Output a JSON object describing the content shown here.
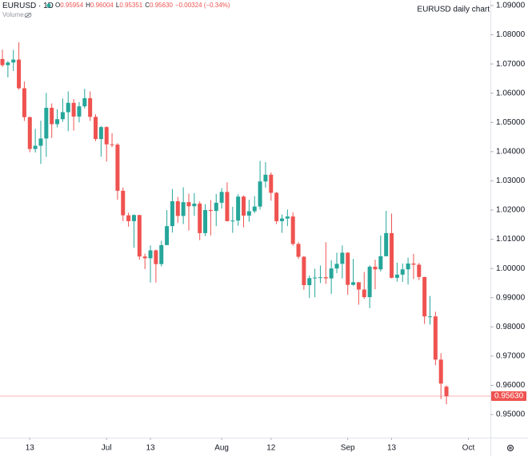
{
  "chart_data": {
    "type": "candlestick",
    "title": "EURUSD daily chart",
    "header": {
      "symbol": "EURUSD · 1D",
      "ohlc": [
        {
          "key": "O",
          "value": "0.95954"
        },
        {
          "key": "H",
          "value": "0.96004"
        },
        {
          "key": "L",
          "value": "0.95351"
        },
        {
          "key": "C",
          "value": "0.95630"
        }
      ],
      "change": "−0.00324 (−0.34%)",
      "volume": "Volume"
    },
    "up_color": "#26a69a",
    "down_color": "#ef5350",
    "last_price_label": "0.95630",
    "open": [
      1.0717,
      1.0696,
      1.0705,
      1.0715,
      1.0617,
      1.0518,
      1.0409,
      1.042,
      1.0445,
      1.055,
      1.0494,
      1.0511,
      1.0535,
      1.0567,
      1.052,
      1.0555,
      1.0583,
      1.0519,
      1.0443,
      1.0484,
      1.0425,
      1.0424,
      1.0266,
      1.0182,
      1.0162,
      1.0183,
      1.0041,
      1.0035,
      1.0062,
      1.0015,
      1.008,
      1.0145,
      1.023,
      1.018,
      1.0227,
      1.0213,
      1.0222,
      1.0121,
      1.02,
      1.0197,
      1.0225,
      1.0262,
      1.0162,
      1.0164,
      1.0246,
      1.0181,
      1.0196,
      1.0212,
      1.0298,
      1.0321,
      1.0259,
      1.0162,
      1.0171,
      1.0178,
      1.0084,
      1.004,
      0.9943,
      0.9967,
      0.9969,
      0.997,
      0.9966,
      1.0,
      1.0016,
      1.0054,
      0.9944,
      0.9953,
      0.9928,
      0.9902,
      1.0006,
      0.9997,
      1.0042,
      1.0121,
      0.9968,
      0.9979,
      0.9997,
      1.0017,
      1.0013,
      0.9971,
      0.9836,
      0.9836,
      0.9688,
      0.95954
    ],
    "high": [
      1.0749,
      1.071,
      1.0748,
      1.0774,
      1.064,
      1.052,
      1.0478,
      1.0506,
      1.0601,
      1.0565,
      1.0545,
      1.0582,
      1.0606,
      1.058,
      1.057,
      1.0615,
      1.0606,
      1.0528,
      1.0488,
      1.0487,
      1.0463,
      1.0429,
      1.0277,
      1.0191,
      1.0185,
      1.0183,
      1.0051,
      1.0079,
      1.0065,
      1.0095,
      1.02,
      1.0272,
      1.0245,
      1.0278,
      1.0256,
      1.0258,
      1.023,
      1.022,
      1.0234,
      1.0255,
      1.0275,
      1.0295,
      1.0211,
      1.0254,
      1.025,
      1.0235,
      1.0248,
      1.0368,
      1.0364,
      1.0329,
      1.0262,
      1.0185,
      1.0202,
      1.0192,
      1.009,
      1.0043,
      0.9976,
      0.9999,
      1.001,
      1.009,
      1.0028,
      1.0054,
      1.0079,
      1.0056,
      1.0033,
      0.9953,
      0.9988,
      1.0011,
      1.003,
      1.0113,
      1.0197,
      1.0188,
      1.002,
      1.0017,
      1.0037,
      1.005,
      1.0019,
      0.9971,
      0.9906,
      0.9852,
      0.971,
      0.96004
    ],
    "low": [
      1.069,
      1.0654,
      1.0676,
      1.0612,
      1.0505,
      1.0398,
      1.0397,
      1.0358,
      1.0382,
      1.0447,
      1.0483,
      1.0502,
      1.047,
      1.0472,
      1.05,
      1.0548,
      1.0505,
      1.0436,
      1.0383,
      1.0366,
      1.0415,
      1.0235,
      1.0162,
      1.0143,
      1.0071,
      1.003,
      0.9998,
      0.9952,
      0.9952,
      1.0007,
      1.008,
      1.0123,
      1.0156,
      1.0152,
      1.013,
      1.018,
      1.0097,
      1.0111,
      1.0113,
      1.0145,
      1.0205,
      1.0161,
      1.0122,
      1.0146,
      1.0141,
      1.016,
      1.0189,
      1.0202,
      1.0277,
      1.0232,
      1.0152,
      1.0122,
      1.0145,
      1.0078,
      1.0033,
      0.9927,
      0.9899,
      0.9902,
      0.995,
      0.9947,
      0.9913,
      0.9984,
      0.9966,
      0.991,
      0.9941,
      0.9876,
      0.9896,
      0.9864,
      0.9929,
      0.999,
      1.0042,
      0.9966,
      0.9955,
      0.9954,
      0.9945,
      0.9964,
      0.996,
      0.981,
      0.9808,
      0.9669,
      0.9553,
      0.95351
    ],
    "close": [
      1.0696,
      1.0705,
      1.0715,
      1.0617,
      1.0518,
      1.0409,
      1.042,
      1.0445,
      1.055,
      1.0494,
      1.0511,
      1.0535,
      1.0567,
      1.052,
      1.0555,
      1.0583,
      1.0519,
      1.0443,
      1.0484,
      1.0425,
      1.0424,
      1.0266,
      1.0182,
      1.0162,
      1.0183,
      1.0041,
      1.0035,
      1.0062,
      1.0015,
      1.008,
      1.0145,
      1.023,
      1.018,
      1.0227,
      1.0213,
      1.0222,
      1.0121,
      1.02,
      1.0197,
      1.0225,
      1.0262,
      1.0162,
      1.0164,
      1.0246,
      1.0181,
      1.0196,
      1.0212,
      1.0298,
      1.0321,
      1.0259,
      1.0162,
      1.0171,
      1.0178,
      1.0084,
      1.004,
      0.9943,
      0.9967,
      0.9969,
      0.997,
      0.9966,
      1.0,
      1.0016,
      1.0054,
      0.9944,
      0.9953,
      0.9928,
      0.9902,
      1.0006,
      0.9997,
      1.0042,
      1.0121,
      0.9968,
      0.9979,
      0.9997,
      1.0017,
      1.0013,
      0.9971,
      0.9836,
      0.9836,
      0.9688,
      0.9606,
      0.9563
    ],
    "xlim": [
      -0.44,
      89.02
    ],
    "xticks": [
      {
        "value": 5,
        "label": "13"
      },
      {
        "value": 19,
        "label": "Jul"
      },
      {
        "value": 27,
        "label": "13"
      },
      {
        "value": 40,
        "label": "Aug"
      },
      {
        "value": 49,
        "label": "12"
      },
      {
        "value": 63,
        "label": "Sep"
      },
      {
        "value": 71,
        "label": "13"
      },
      {
        "value": 85,
        "label": "Oct"
      }
    ],
    "ylim": [
      0.9421,
      1.0919
    ],
    "yticks": [
      {
        "value": 0.95,
        "label": "0.95000"
      },
      {
        "value": 0.96,
        "label": "0.96000"
      },
      {
        "value": 0.97,
        "label": "0.97000"
      },
      {
        "value": 0.98,
        "label": "0.98000"
      },
      {
        "value": 0.99,
        "label": "0.99000"
      },
      {
        "value": 1.0,
        "label": "1.00000"
      },
      {
        "value": 1.01,
        "label": "1.01000"
      },
      {
        "value": 1.02,
        "label": "1.02000"
      },
      {
        "value": 1.03,
        "label": "1.03000"
      },
      {
        "value": 1.04,
        "label": "1.04000"
      },
      {
        "value": 1.05,
        "label": "1.05000"
      },
      {
        "value": 1.06,
        "label": "1.06000"
      },
      {
        "value": 1.07,
        "label": "1.07000"
      },
      {
        "value": 1.08,
        "label": "1.08000"
      },
      {
        "value": 1.09,
        "label": "1.09000"
      }
    ],
    "grid": false
  }
}
